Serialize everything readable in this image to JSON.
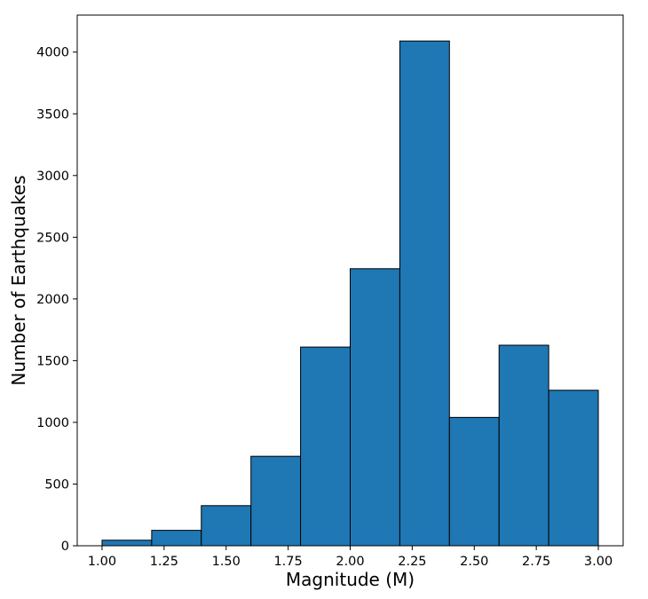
{
  "chart_data": {
    "type": "bar",
    "title": "",
    "xlabel": "Magnitude (M)",
    "ylabel": "Number of Earthquakes",
    "bin_edges": [
      1.0,
      1.2,
      1.4,
      1.6,
      1.8,
      2.0,
      2.2,
      2.4,
      2.6,
      2.8,
      3.0
    ],
    "values": [
      45,
      125,
      325,
      725,
      1610,
      2245,
      4090,
      1040,
      1625,
      1260
    ],
    "xlim": [
      0.9,
      3.1
    ],
    "ylim": [
      0,
      4300
    ],
    "xticks": [
      "1.00",
      "1.25",
      "1.50",
      "1.75",
      "2.00",
      "2.25",
      "2.50",
      "2.75",
      "3.00"
    ],
    "yticks": [
      "0",
      "500",
      "1000",
      "1500",
      "2000",
      "2500",
      "3000",
      "3500",
      "4000"
    ],
    "bar_color": "#1f77b4",
    "edge_color": "#000000",
    "grid": false,
    "legend": "none"
  }
}
